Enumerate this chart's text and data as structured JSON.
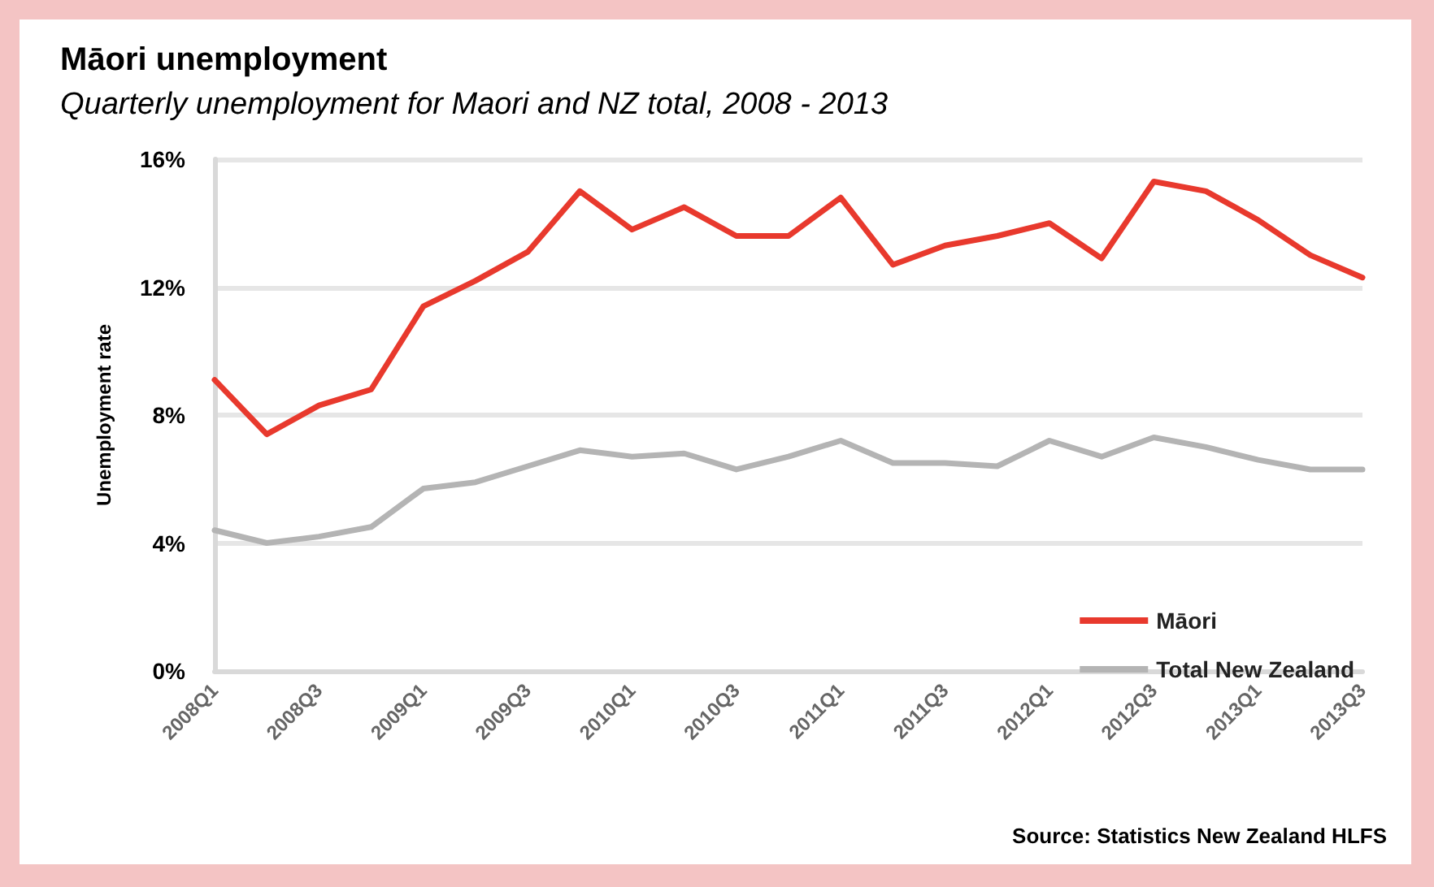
{
  "chart_data": {
    "type": "line",
    "title": "Māori unemployment",
    "subtitle": "Quarterly unemployment for Maori and NZ total, 2008 - 2013",
    "ylabel": "Unemployment rate",
    "annotations": [
      "Source: Statistics New Zealand HLFS"
    ],
    "categories": [
      "2008Q1",
      null,
      "2008Q3",
      null,
      "2009Q1",
      null,
      "2009Q3",
      null,
      "2010Q1",
      null,
      "2010Q3",
      null,
      "2011Q1",
      null,
      "2011Q3",
      null,
      "2012Q1",
      null,
      "2012Q3",
      null,
      "2013Q1",
      null,
      "2013Q3"
    ],
    "series": [
      {
        "name": "Māori",
        "color": "#e8392d",
        "values": [
          9.1,
          7.4,
          8.3,
          8.8,
          11.4,
          12.2,
          13.1,
          15.0,
          13.8,
          14.5,
          13.6,
          13.6,
          14.8,
          12.7,
          13.3,
          13.6,
          14.0,
          12.9,
          15.3,
          15.0,
          14.1,
          13.0,
          12.3
        ]
      },
      {
        "name": "Total New Zealand",
        "color": "#b4b4b4",
        "values": [
          4.4,
          4.0,
          4.2,
          4.5,
          5.7,
          5.9,
          6.4,
          6.9,
          6.7,
          6.8,
          6.3,
          6.7,
          7.2,
          6.5,
          6.5,
          6.4,
          7.2,
          6.7,
          7.3,
          7.0,
          6.6,
          6.3,
          6.3
        ]
      }
    ],
    "ylim": [
      0,
      16
    ],
    "yticks": [
      {
        "value": 0,
        "label": "0%"
      },
      {
        "value": 4,
        "label": "4%"
      },
      {
        "value": 8,
        "label": "8%"
      },
      {
        "value": 12,
        "label": "12%"
      },
      {
        "value": 16,
        "label": "16%"
      }
    ],
    "grid": "y",
    "legend": "bottom right",
    "marker": "none",
    "line_style": "solid"
  }
}
